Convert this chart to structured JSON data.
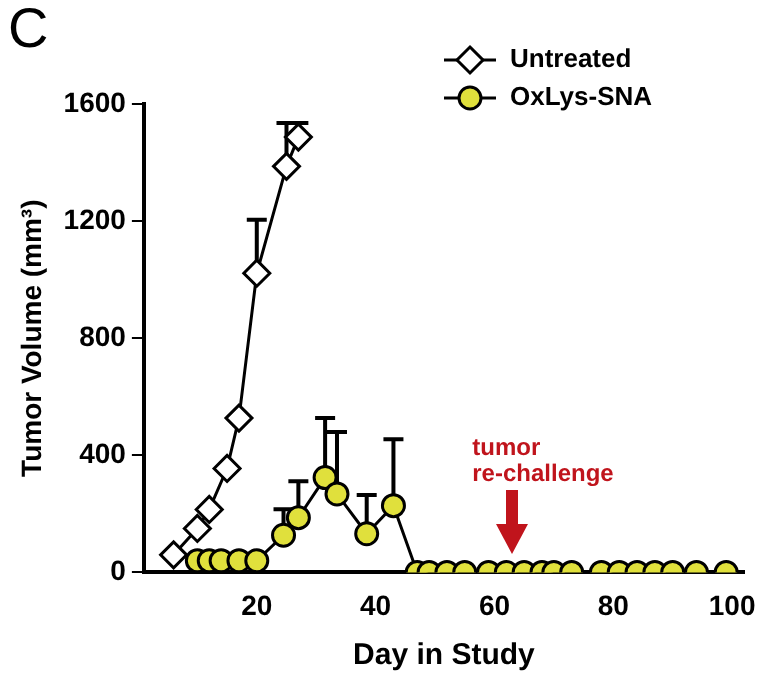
{
  "chart_data": {
    "type": "line",
    "xlabel": "Day in Study",
    "ylabel": "Tumor Volume (mm³)",
    "xlim": [
      1,
      102
    ],
    "xticks": [
      20,
      40,
      60,
      80,
      100
    ],
    "ylim": [
      0,
      1600
    ],
    "yticks": [
      0,
      400,
      800,
      1200,
      1600
    ],
    "grid": false,
    "legend": "top right",
    "line_style": "solid",
    "annotations": [
      "C",
      {
        "text": "tumor re-challenge",
        "x": 63,
        "y": 60
      }
    ],
    "series": [
      {
        "name": "Untreated",
        "color": "#ffffff",
        "marker": "diamond",
        "x": [
          6,
          10,
          12,
          15,
          17,
          20,
          25,
          27
        ],
        "values": [
          60,
          150,
          215,
          355,
          527,
          1022,
          1387,
          1487
        ],
        "errors": [
          null,
          null,
          null,
          null,
          null,
          [
            1022,
            1205
          ],
          [
            1387,
            1535
          ],
          [
            1487,
            1535
          ]
        ]
      },
      {
        "name": "OxLys-SNA",
        "color": "#e0e03c",
        "marker": "circle",
        "x": [
          10,
          12,
          14,
          17,
          20,
          24.5,
          27,
          31.5,
          33.5,
          38.5,
          43,
          47,
          49,
          52,
          55,
          59,
          62,
          65,
          68,
          70,
          73,
          78,
          81,
          84,
          87,
          90,
          94,
          99
        ],
        "values": [
          40,
          40,
          40,
          40,
          40,
          127,
          187,
          324,
          268,
          132,
          228,
          0,
          0,
          0,
          0,
          0,
          0,
          0,
          0,
          0,
          0,
          0,
          0,
          0,
          0,
          0,
          0,
          0
        ],
        "errors": [
          null,
          null,
          null,
          null,
          null,
          [
            127,
            216
          ],
          [
            187,
            311
          ],
          [
            324,
            527
          ],
          [
            268,
            480
          ],
          [
            132,
            264
          ],
          [
            228,
            455
          ],
          null,
          null,
          null,
          null,
          null,
          null,
          null,
          null,
          null,
          null,
          null,
          null,
          null,
          null,
          null,
          null,
          null
        ]
      }
    ]
  }
}
